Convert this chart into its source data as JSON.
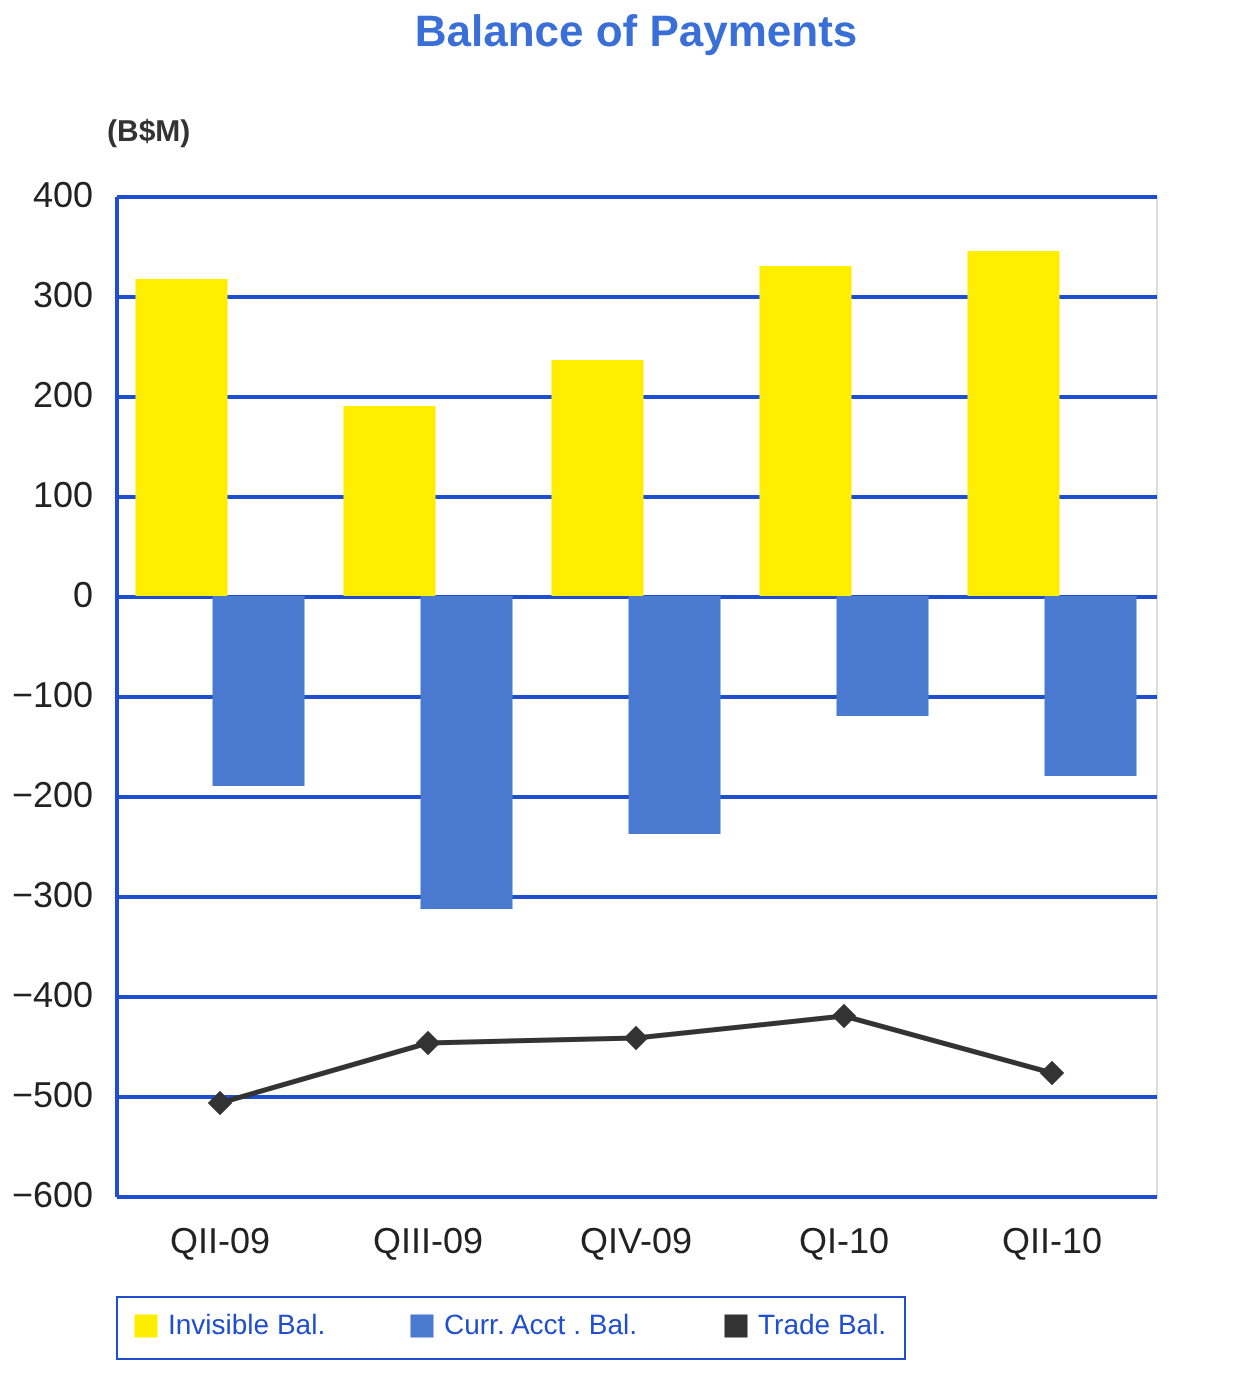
{
  "chart_data": {
    "type": "bar",
    "title": "Balance of Payments",
    "ylabel": "(B$M)",
    "categories": [
      "QII-09",
      "QIII-09",
      "QIV-09",
      "QI-10",
      "QII-10"
    ],
    "series": [
      {
        "name": "Invisible Bal.",
        "color": "#ffee00",
        "values": [
          317,
          190,
          236,
          330,
          345
        ]
      },
      {
        "name": "Curr. Acct . Bal.",
        "color": "#4a7bd0",
        "values": [
          -190,
          -313,
          -238,
          -120,
          -180
        ]
      },
      {
        "name": "Trade Bal.",
        "color": "#333333",
        "type": "line",
        "marker": "diamond",
        "values": [
          -507,
          -447,
          -442,
          -420,
          -477
        ]
      }
    ],
    "ylim": [
      -600,
      400
    ],
    "yticks": [
      -600,
      -500,
      -400,
      -300,
      -200,
      -100,
      0,
      100,
      200,
      300,
      400
    ],
    "grid": "y",
    "legend": "bottom"
  }
}
